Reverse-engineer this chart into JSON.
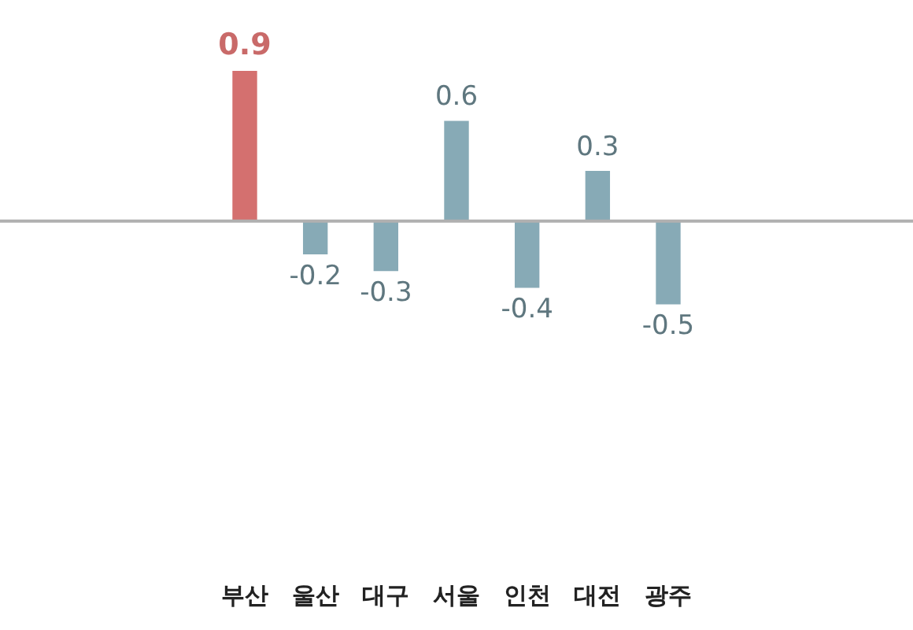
{
  "chart_data": {
    "type": "bar",
    "categories": [
      "부산",
      "울산",
      "대구",
      "서울",
      "인천",
      "대전",
      "광주"
    ],
    "values": [
      0.9,
      -0.2,
      -0.3,
      0.6,
      -0.4,
      0.3,
      -0.5
    ],
    "colors": [
      "#d4706f",
      "#87aab6",
      "#87aab6",
      "#87aab6",
      "#87aab6",
      "#87aab6",
      "#87aab6"
    ],
    "data_labels": true,
    "grid": false,
    "legend": false
  }
}
